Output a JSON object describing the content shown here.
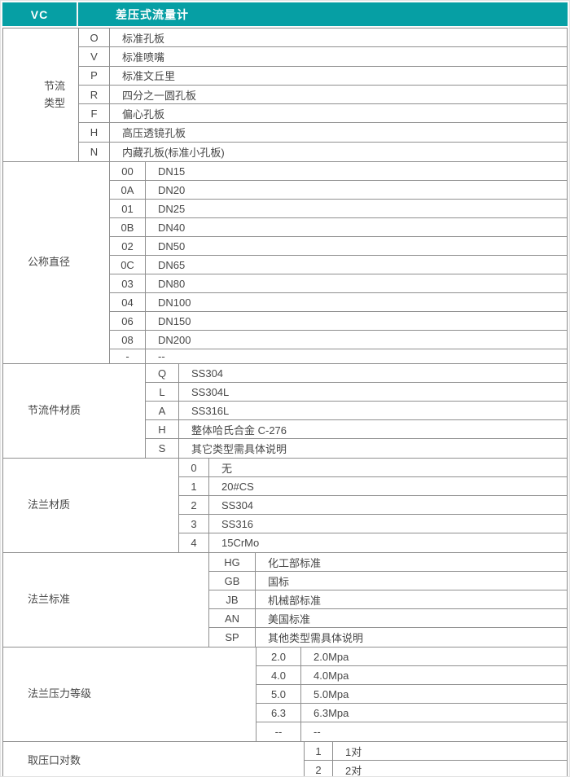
{
  "colors": {
    "header_bg": "#069fa4",
    "border": "#8f8f8f",
    "text": "#474747"
  },
  "header": {
    "code": "VC",
    "title": "差压式流量计"
  },
  "groups": [
    {
      "label": "节流\n类型",
      "rows": [
        {
          "code": "O",
          "desc": "标准孔板"
        },
        {
          "code": "V",
          "desc": "标准喷嘴"
        },
        {
          "code": "P",
          "desc": "标准文丘里"
        },
        {
          "code": "R",
          "desc": "四分之一圆孔板"
        },
        {
          "code": "F",
          "desc": "偏心孔板"
        },
        {
          "code": "H",
          "desc": "高压透镜孔板"
        },
        {
          "code": "N",
          "desc": "内藏孔板(标准小孔板)"
        }
      ]
    },
    {
      "label": "公称直径",
      "rows": [
        {
          "code": "00",
          "desc": "DN15"
        },
        {
          "code": "0A",
          "desc": "DN20"
        },
        {
          "code": "01",
          "desc": "DN25"
        },
        {
          "code": "0B",
          "desc": "DN40"
        },
        {
          "code": "02",
          "desc": "DN50"
        },
        {
          "code": "0C",
          "desc": "DN65"
        },
        {
          "code": "03",
          "desc": "DN80"
        },
        {
          "code": "04",
          "desc": "DN100"
        },
        {
          "code": "06",
          "desc": "DN150"
        },
        {
          "code": "08",
          "desc": "DN200"
        },
        {
          "code": "-",
          "desc": "--"
        }
      ]
    },
    {
      "label": "节流件材质",
      "rows": [
        {
          "code": "Q",
          "desc": "SS304"
        },
        {
          "code": "L",
          "desc": "SS304L"
        },
        {
          "code": "A",
          "desc": "SS316L"
        },
        {
          "code": "H",
          "desc": "整体哈氏合金 C-276"
        },
        {
          "code": "S",
          "desc": "其它类型需具体说明"
        }
      ]
    },
    {
      "label": "法兰材质",
      "rows": [
        {
          "code": "0",
          "desc": "无"
        },
        {
          "code": "1",
          "desc": "20#CS"
        },
        {
          "code": "2",
          "desc": "SS304"
        },
        {
          "code": "3",
          "desc": "SS316"
        },
        {
          "code": "4",
          "desc": "15CrMo"
        }
      ]
    },
    {
      "label": "法兰标准",
      "rows": [
        {
          "code": "HG",
          "desc": "化工部标准"
        },
        {
          "code": "GB",
          "desc": "国标"
        },
        {
          "code": "JB",
          "desc": "机械部标准"
        },
        {
          "code": "AN",
          "desc": "美国标准"
        },
        {
          "code": "SP",
          "desc": "其他类型需具体说明"
        }
      ]
    },
    {
      "label": "法兰压力等级",
      "rows": [
        {
          "code": "2.0",
          "desc": "2.0Mpa"
        },
        {
          "code": "4.0",
          "desc": "4.0Mpa"
        },
        {
          "code": "5.0",
          "desc": "5.0Mpa"
        },
        {
          "code": "6.3",
          "desc": "6.3Mpa"
        },
        {
          "code": "--",
          "desc": "--"
        }
      ]
    },
    {
      "label": "取压口对数",
      "rows": [
        {
          "code": "1",
          "desc": "1对"
        },
        {
          "code": "2",
          "desc": "2对"
        }
      ]
    }
  ]
}
